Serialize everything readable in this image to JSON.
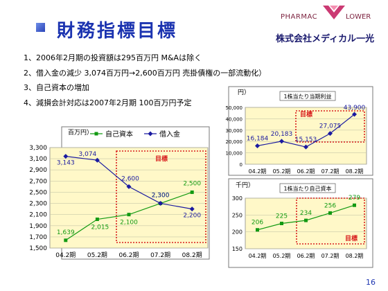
{
  "page": {
    "title": "財務指標目標",
    "page_number": "16",
    "logo": {
      "brand_left": "PHARMAC",
      "brand_right": "LOWER",
      "company": "株式会社メディカル一光"
    },
    "bullets": [
      "1、2006年2月期の投資額は295百万円 M&Aは除く",
      "2、借入金の減少 3,074百万円→2,600百万円 売掛債権の一部流動化）",
      "3、自己資本の増加",
      "4、減損会計対応は2007年2月期 100百万円予定"
    ]
  },
  "colors": {
    "accent": "#1b33b0",
    "target_box": "#d81c1c",
    "plot_bg": "#fff8c8",
    "debt": "#1a1aa0",
    "equity": "#129a12"
  },
  "chart_data": [
    {
      "type": "line",
      "unit_label": "百万円）",
      "categories": [
        "04.2期",
        "05.2期",
        "06.2期",
        "07.2期",
        "08.2期"
      ],
      "ylim": [
        1500,
        3300
      ],
      "yticks": [
        "1,500",
        "1,700",
        "1,900",
        "2,100",
        "2,300",
        "2,500",
        "2,700",
        "2,900",
        "3,100",
        "3,300"
      ],
      "legend_position": "top",
      "target_label": "目標",
      "series": [
        {
          "name": "自己資本",
          "color": "#129a12",
          "values": [
            1639,
            2015,
            2100,
            2300,
            2500
          ],
          "labels": [
            "1,639",
            "2,015",
            "2,100",
            "2,300",
            "2,500"
          ]
        },
        {
          "name": "借入金",
          "color": "#1a1aa0",
          "values": [
            3143,
            3074,
            2600,
            2300,
            2200
          ],
          "labels": [
            "3,143",
            "3,074",
            "2,600",
            "2,300",
            "2,200"
          ]
        }
      ]
    },
    {
      "type": "line",
      "title": "1株当たり当期利益",
      "unit_label": "円）",
      "categories": [
        "04.2期",
        "05.2期",
        "06.2期",
        "07.2期",
        "08.2期"
      ],
      "ylim": [
        0,
        50000
      ],
      "yticks": [
        "0",
        "10,000",
        "20,000",
        "30,000",
        "40,000",
        "50,000"
      ],
      "target_label": "目標",
      "series": [
        {
          "color": "#1a1aa0",
          "values": [
            16184,
            20183,
            15153,
            27075,
            43900
          ],
          "labels": [
            "16,184",
            "20,183",
            "15,153",
            "27,075",
            "43,900"
          ]
        }
      ]
    },
    {
      "type": "line",
      "title": "1株当たり自己資本",
      "unit_label": "千円）",
      "categories": [
        "04.2期",
        "05.2期",
        "06.2期",
        "07.2期",
        "08.2期"
      ],
      "ylim": [
        150,
        300
      ],
      "yticks": [
        "150",
        "200",
        "250",
        "300"
      ],
      "target_label": "目標",
      "series": [
        {
          "color": "#129a12",
          "values": [
            206,
            225,
            234,
            256,
            279
          ],
          "labels": [
            "206",
            "225",
            "234",
            "256",
            "279"
          ]
        }
      ]
    }
  ]
}
